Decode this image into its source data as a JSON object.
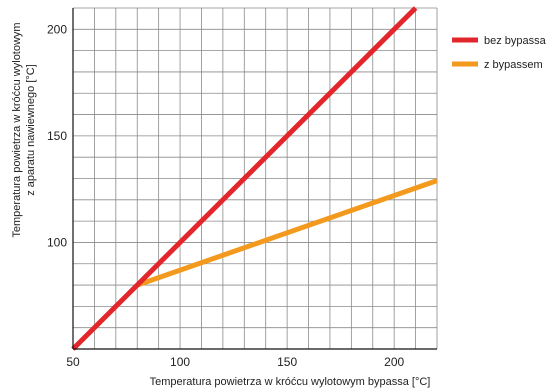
{
  "chart_data": {
    "type": "line",
    "xlabel": "Temperatura powietrza w króćcu wylotowym bypassa [°C]",
    "ylabel_lines": [
      "Temperatura powietrza w króćcu wylotowym",
      "z aparatu nawiewnego [°C]"
    ],
    "xlim": [
      50,
      220
    ],
    "ylim": [
      50,
      210
    ],
    "x_ticks": [
      50,
      100,
      150,
      200
    ],
    "y_ticks": [
      100,
      150,
      200
    ],
    "x_grid_step": 10,
    "y_grid_step": 10,
    "grid": true,
    "legend_position": "right",
    "series": [
      {
        "name": "bez bypassa",
        "color": "#e3262b",
        "points": [
          [
            50,
            50
          ],
          [
            210,
            210
          ]
        ]
      },
      {
        "name": "z bypassem",
        "color": "#f39a1e",
        "points": [
          [
            80,
            80
          ],
          [
            220,
            129
          ]
        ]
      }
    ]
  }
}
